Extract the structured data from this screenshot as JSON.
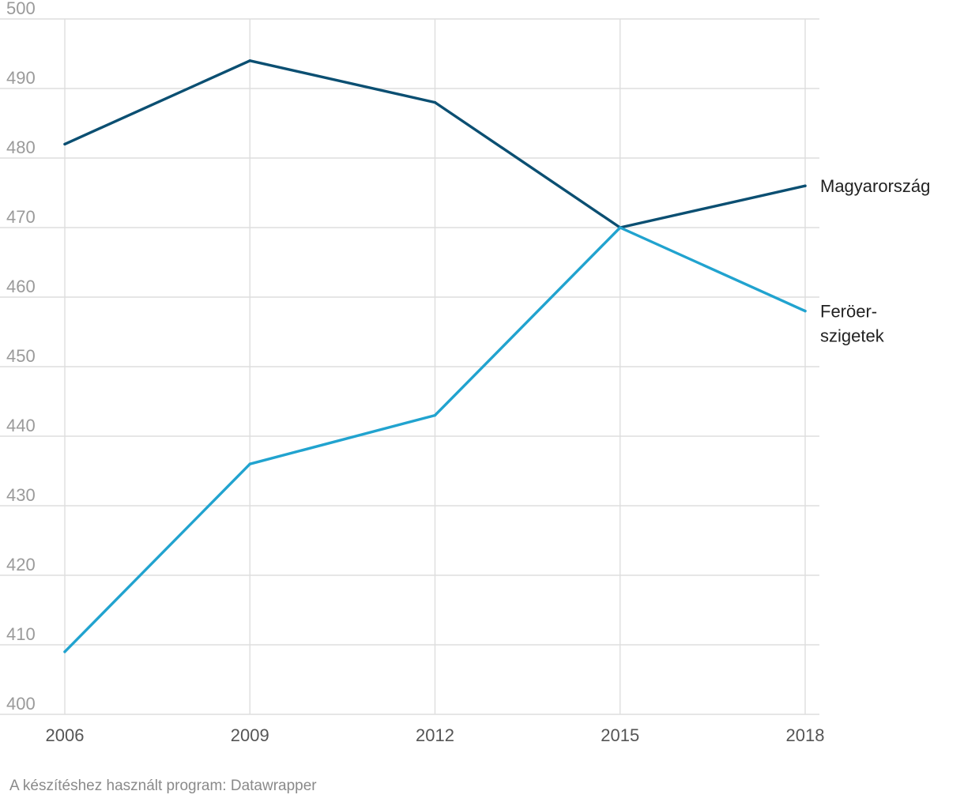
{
  "chart_data": {
    "type": "line",
    "x": [
      "2006",
      "2009",
      "2012",
      "2015",
      "2018"
    ],
    "ylim": [
      400,
      500
    ],
    "yticks": [
      500,
      490,
      480,
      470,
      460,
      450,
      440,
      430,
      420,
      410,
      400
    ],
    "grid": true,
    "series": [
      {
        "name": "Magyarország",
        "label_lines": [
          "Magyarország"
        ],
        "color": "#0b4f72",
        "values": [
          482,
          494,
          488,
          470,
          476
        ]
      },
      {
        "name": "Feröer-szigetek",
        "label_lines": [
          "Feröer-",
          "szigetek"
        ],
        "color": "#21a3cf",
        "values": [
          409,
          436,
          443,
          470,
          458
        ]
      }
    ]
  },
  "credit": "A készítéshez használt program: Datawrapper"
}
